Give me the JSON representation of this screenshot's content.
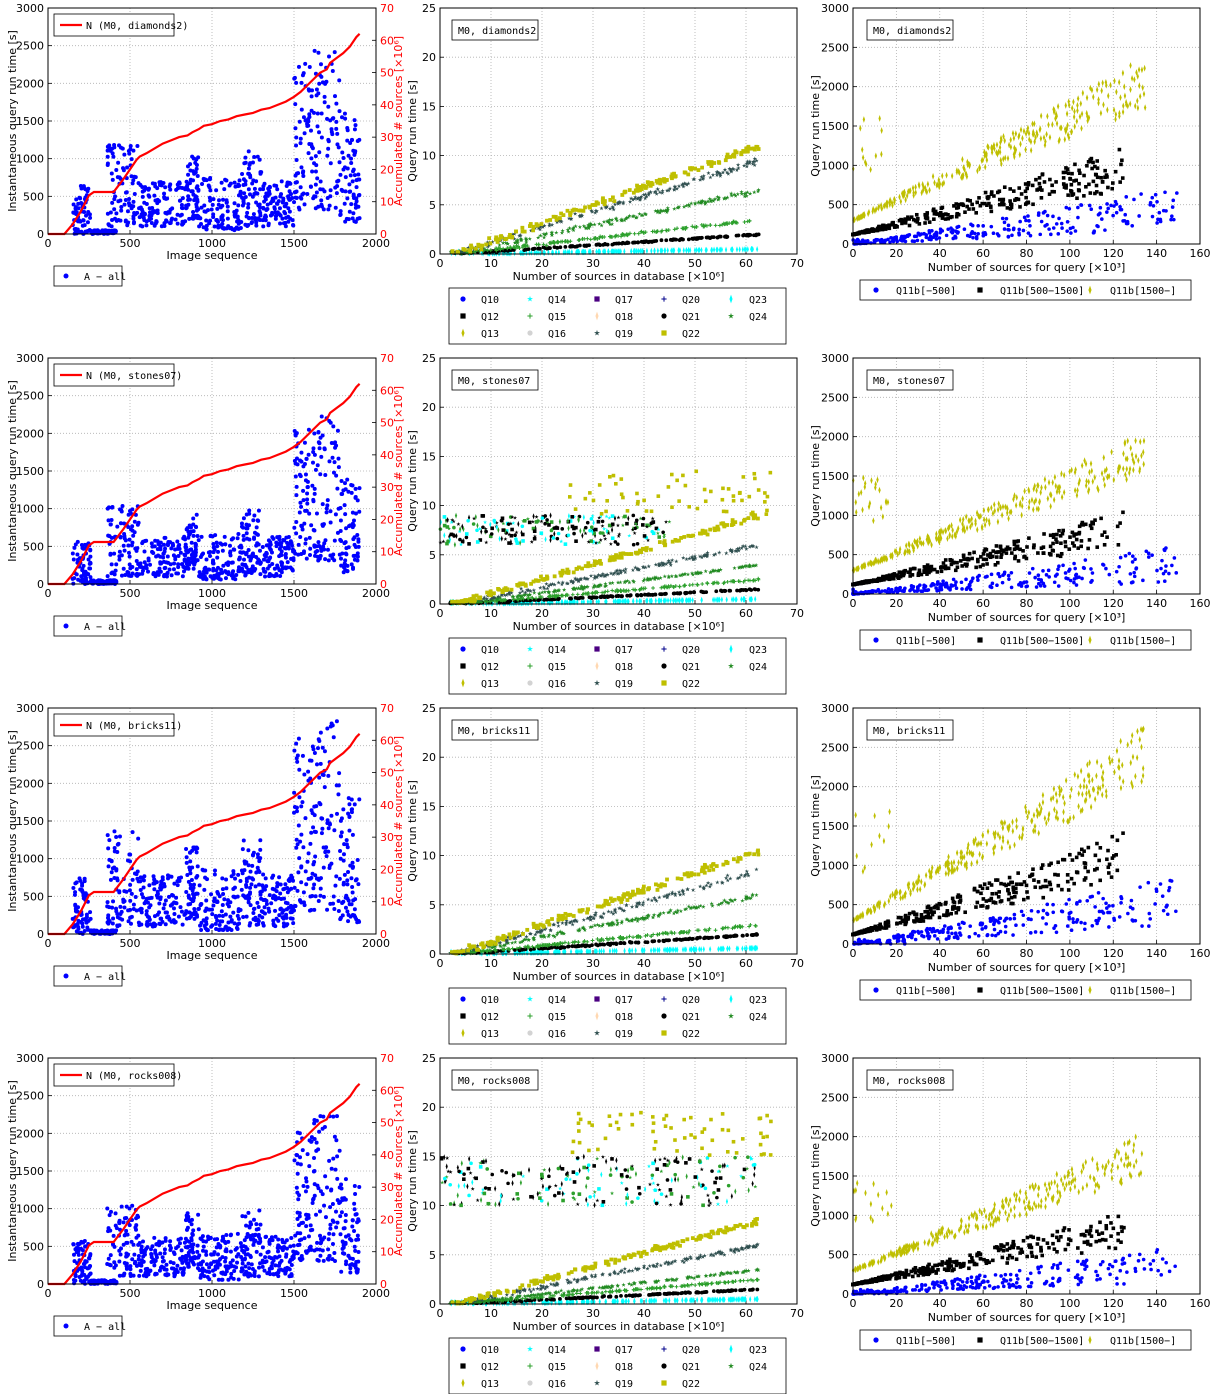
{
  "colors": {
    "blue": "#0000ff",
    "red": "#ff0000",
    "black": "#000000",
    "olive": "#bfbf00",
    "cyan": "#00ffff",
    "green": "#2ca02c",
    "purple": "#4b0082",
    "navy": "#00008b",
    "peach": "#ffd8b1",
    "darkslate": "#2f4f4f",
    "lightgray": "#d3d3d3",
    "forest": "#228b22"
  },
  "labels": {
    "left_xlabel": "Image sequence",
    "left_ylabel": "Instantaneous query run time [s]",
    "left_y2label": "Accumulated # sources [×10⁶]",
    "mid_xlabel": "Number of sources in database [×10⁶]",
    "mid_ylabel": "Query run time [s]",
    "right_xlabel": "Number of sources for query [×10³]",
    "right_ylabel": "Query run time [s]"
  },
  "legends": {
    "left_scatter": "A − all",
    "middle": [
      "Q10",
      "Q14",
      "Q17",
      "Q20",
      "Q23",
      "Q12",
      "Q15",
      "Q18",
      "Q21",
      "Q24",
      "Q13",
      "Q16",
      "Q19",
      "Q22"
    ],
    "right": [
      "Q11b[−500]",
      "Q11b[500−1500]",
      "Q11b[1500−]"
    ]
  },
  "datasets": [
    {
      "id": "diamonds2",
      "left_legend": "N (M0, diamonds2)",
      "mid_label": "M0, diamonds2",
      "right_label": "M0, diamonds2"
    },
    {
      "id": "stones07",
      "left_legend": "N (M0, stones07)",
      "mid_label": "M0, stones07",
      "right_label": "M0, stones07"
    },
    {
      "id": "bricks11",
      "left_legend": "N (M0, bricks11)",
      "mid_label": "M0, bricks11",
      "right_label": "M0, bricks11"
    },
    {
      "id": "rocks008",
      "left_legend": "N (M0, rocks008)",
      "mid_label": "M0, rocks008",
      "right_label": "M0, rocks008"
    }
  ],
  "chart_data": [
    {
      "panel": "left",
      "type": "scatter",
      "xlabel": "Image sequence",
      "ylabel": "Instantaneous query run time [s]",
      "y2label": "Accumulated # sources [×10⁶]",
      "xlim": [
        0,
        2000
      ],
      "ylim": [
        0,
        3000
      ],
      "y2lim": [
        0,
        70
      ],
      "xticks": [
        0,
        500,
        1000,
        1500,
        2000
      ],
      "yticks": [
        0,
        500,
        1000,
        1500,
        2000,
        2500,
        3000
      ],
      "y2ticks": [
        0,
        10,
        20,
        30,
        40,
        50,
        60,
        70
      ],
      "grid": true,
      "accumulated_curve": {
        "x": [
          0,
          100,
          150,
          200,
          250,
          280,
          330,
          400,
          430,
          460,
          500,
          540,
          560,
          600,
          650,
          700,
          750,
          800,
          850,
          880,
          920,
          950,
          1000,
          1050,
          1100,
          1150,
          1200,
          1250,
          1300,
          1350,
          1400,
          1450,
          1500,
          1540,
          1580,
          1620,
          1660,
          1700,
          1720,
          1760,
          1800,
          1840,
          1880,
          1900
        ],
        "y": [
          0,
          0,
          3,
          7,
          12,
          13,
          13,
          13,
          15,
          17,
          20,
          23,
          24,
          25,
          26.5,
          28,
          29,
          30,
          30.5,
          31.5,
          32.5,
          33.5,
          34,
          35,
          35.5,
          36.5,
          37,
          37.5,
          38.5,
          39,
          40,
          41,
          42.5,
          44,
          46,
          48,
          50,
          51,
          53,
          54.5,
          56,
          58,
          61,
          62
        ]
      },
      "scatter_clusters_approx": [
        {
          "x": [
            150,
            260
          ],
          "y": [
            0,
            650
          ]
        },
        {
          "x": [
            260,
            420
          ],
          "y": [
            0,
            50
          ]
        },
        {
          "x": [
            360,
            560
          ],
          "y": [
            100,
            1200
          ]
        },
        {
          "x": [
            560,
            840
          ],
          "y": [
            100,
            700
          ]
        },
        {
          "x": [
            840,
            920
          ],
          "y": [
            200,
            1050
          ]
        },
        {
          "x": [
            920,
            1180
          ],
          "y": [
            50,
            750
          ]
        },
        {
          "x": [
            1180,
            1300
          ],
          "y": [
            100,
            1100
          ]
        },
        {
          "x": [
            1300,
            1500
          ],
          "y": [
            100,
            700
          ]
        },
        {
          "x": [
            1500,
            1620
          ],
          "y": [
            300,
            2300
          ]
        },
        {
          "x": [
            1620,
            1780
          ],
          "y": [
            300,
            2500
          ]
        },
        {
          "x": [
            1780,
            1900
          ],
          "y": [
            150,
            1600
          ]
        }
      ]
    },
    {
      "panel": "middle",
      "type": "scatter",
      "xlabel": "Number of sources in database [×10⁶]",
      "ylabel": "Query run time [s]",
      "xlim": [
        0,
        70
      ],
      "ylim": [
        0,
        25
      ],
      "xticks": [
        0,
        10,
        20,
        30,
        40,
        50,
        60,
        70
      ],
      "yticks": [
        0,
        5,
        10,
        15,
        20,
        25
      ],
      "grid": true,
      "series": [
        {
          "name": "Q22",
          "trend_end_y": {
            "diamonds2": 11,
            "stones07": 9,
            "bricks11": 10.5,
            "rocks008": 8.5
          }
        },
        {
          "name": "Q19",
          "trend_end_y": {
            "diamonds2": 9.5,
            "stones07": 6,
            "bricks11": 8.5,
            "rocks008": 6
          }
        },
        {
          "name": "Q24",
          "trend_end_y": {
            "diamonds2": 6.5,
            "stones07": 4,
            "bricks11": 6,
            "rocks008": 3.5
          }
        },
        {
          "name": "Q15",
          "trend_end_y": {
            "diamonds2": 3.5,
            "stones07": 2.5,
            "bricks11": 3,
            "rocks008": 2.5
          }
        },
        {
          "name": "Q21",
          "trend_end_y": {
            "diamonds2": 2,
            "stones07": 1.5,
            "bricks11": 2,
            "rocks008": 1.5
          }
        },
        {
          "name": "Q23",
          "trend_end_y": {
            "diamonds2": 0.5,
            "stones07": 0.5,
            "bricks11": 0.6,
            "rocks008": 0.5
          }
        }
      ],
      "plateau_band": {
        "stones07": {
          "x": [
            0,
            45
          ],
          "y": [
            6,
            9
          ]
        },
        "rocks008": {
          "x": [
            0,
            62
          ],
          "y": [
            10,
            15
          ]
        }
      }
    },
    {
      "panel": "right",
      "type": "scatter",
      "xlabel": "Number of sources for query [×10³]",
      "ylabel": "Query run time [s]",
      "xlim": [
        0,
        160
      ],
      "ylim": [
        0,
        3000
      ],
      "xticks": [
        0,
        20,
        40,
        60,
        80,
        100,
        120,
        140,
        160
      ],
      "yticks": [
        0,
        500,
        1000,
        1500,
        2000,
        2500,
        3000
      ],
      "grid": true,
      "series": [
        {
          "name": "Q11b[−500]",
          "slope_approx": 4
        },
        {
          "name": "Q11b[500−1500]",
          "slope_approx": 9
        },
        {
          "name": "Q11b[1500−]",
          "slope_approx": 17
        }
      ]
    }
  ]
}
